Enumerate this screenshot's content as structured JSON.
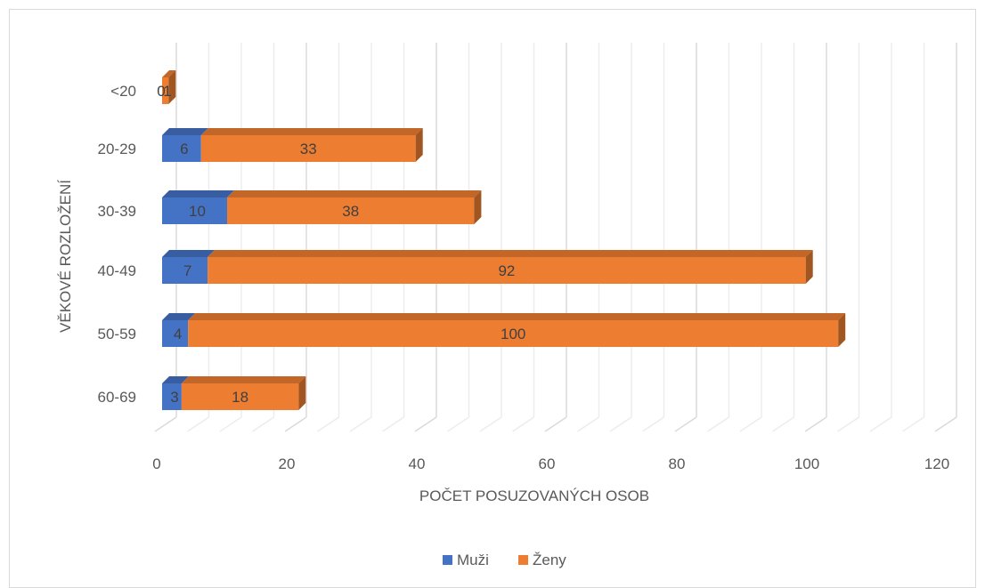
{
  "chart_data": {
    "type": "bar",
    "orientation": "horizontal",
    "stacked": true,
    "style": "3d",
    "categories": [
      "<20",
      "20-29",
      "30-39",
      "40-49",
      "50-59",
      "60-69"
    ],
    "series": [
      {
        "name": "Muži",
        "values": [
          0,
          6,
          10,
          7,
          4,
          3
        ],
        "color": "#4472c4"
      },
      {
        "name": "Ženy",
        "values": [
          1,
          33,
          38,
          92,
          100,
          18
        ],
        "color": "#ed7d31"
      }
    ],
    "xlabel": "POČET POSUZOVANÝCH OSOB",
    "ylabel": "VĚKOVÉ ROZLOŽENÍ",
    "xlim": [
      0,
      120
    ],
    "xticks": [
      0,
      20,
      40,
      60,
      80,
      100,
      120
    ],
    "grid": true,
    "legend_position": "bottom"
  }
}
